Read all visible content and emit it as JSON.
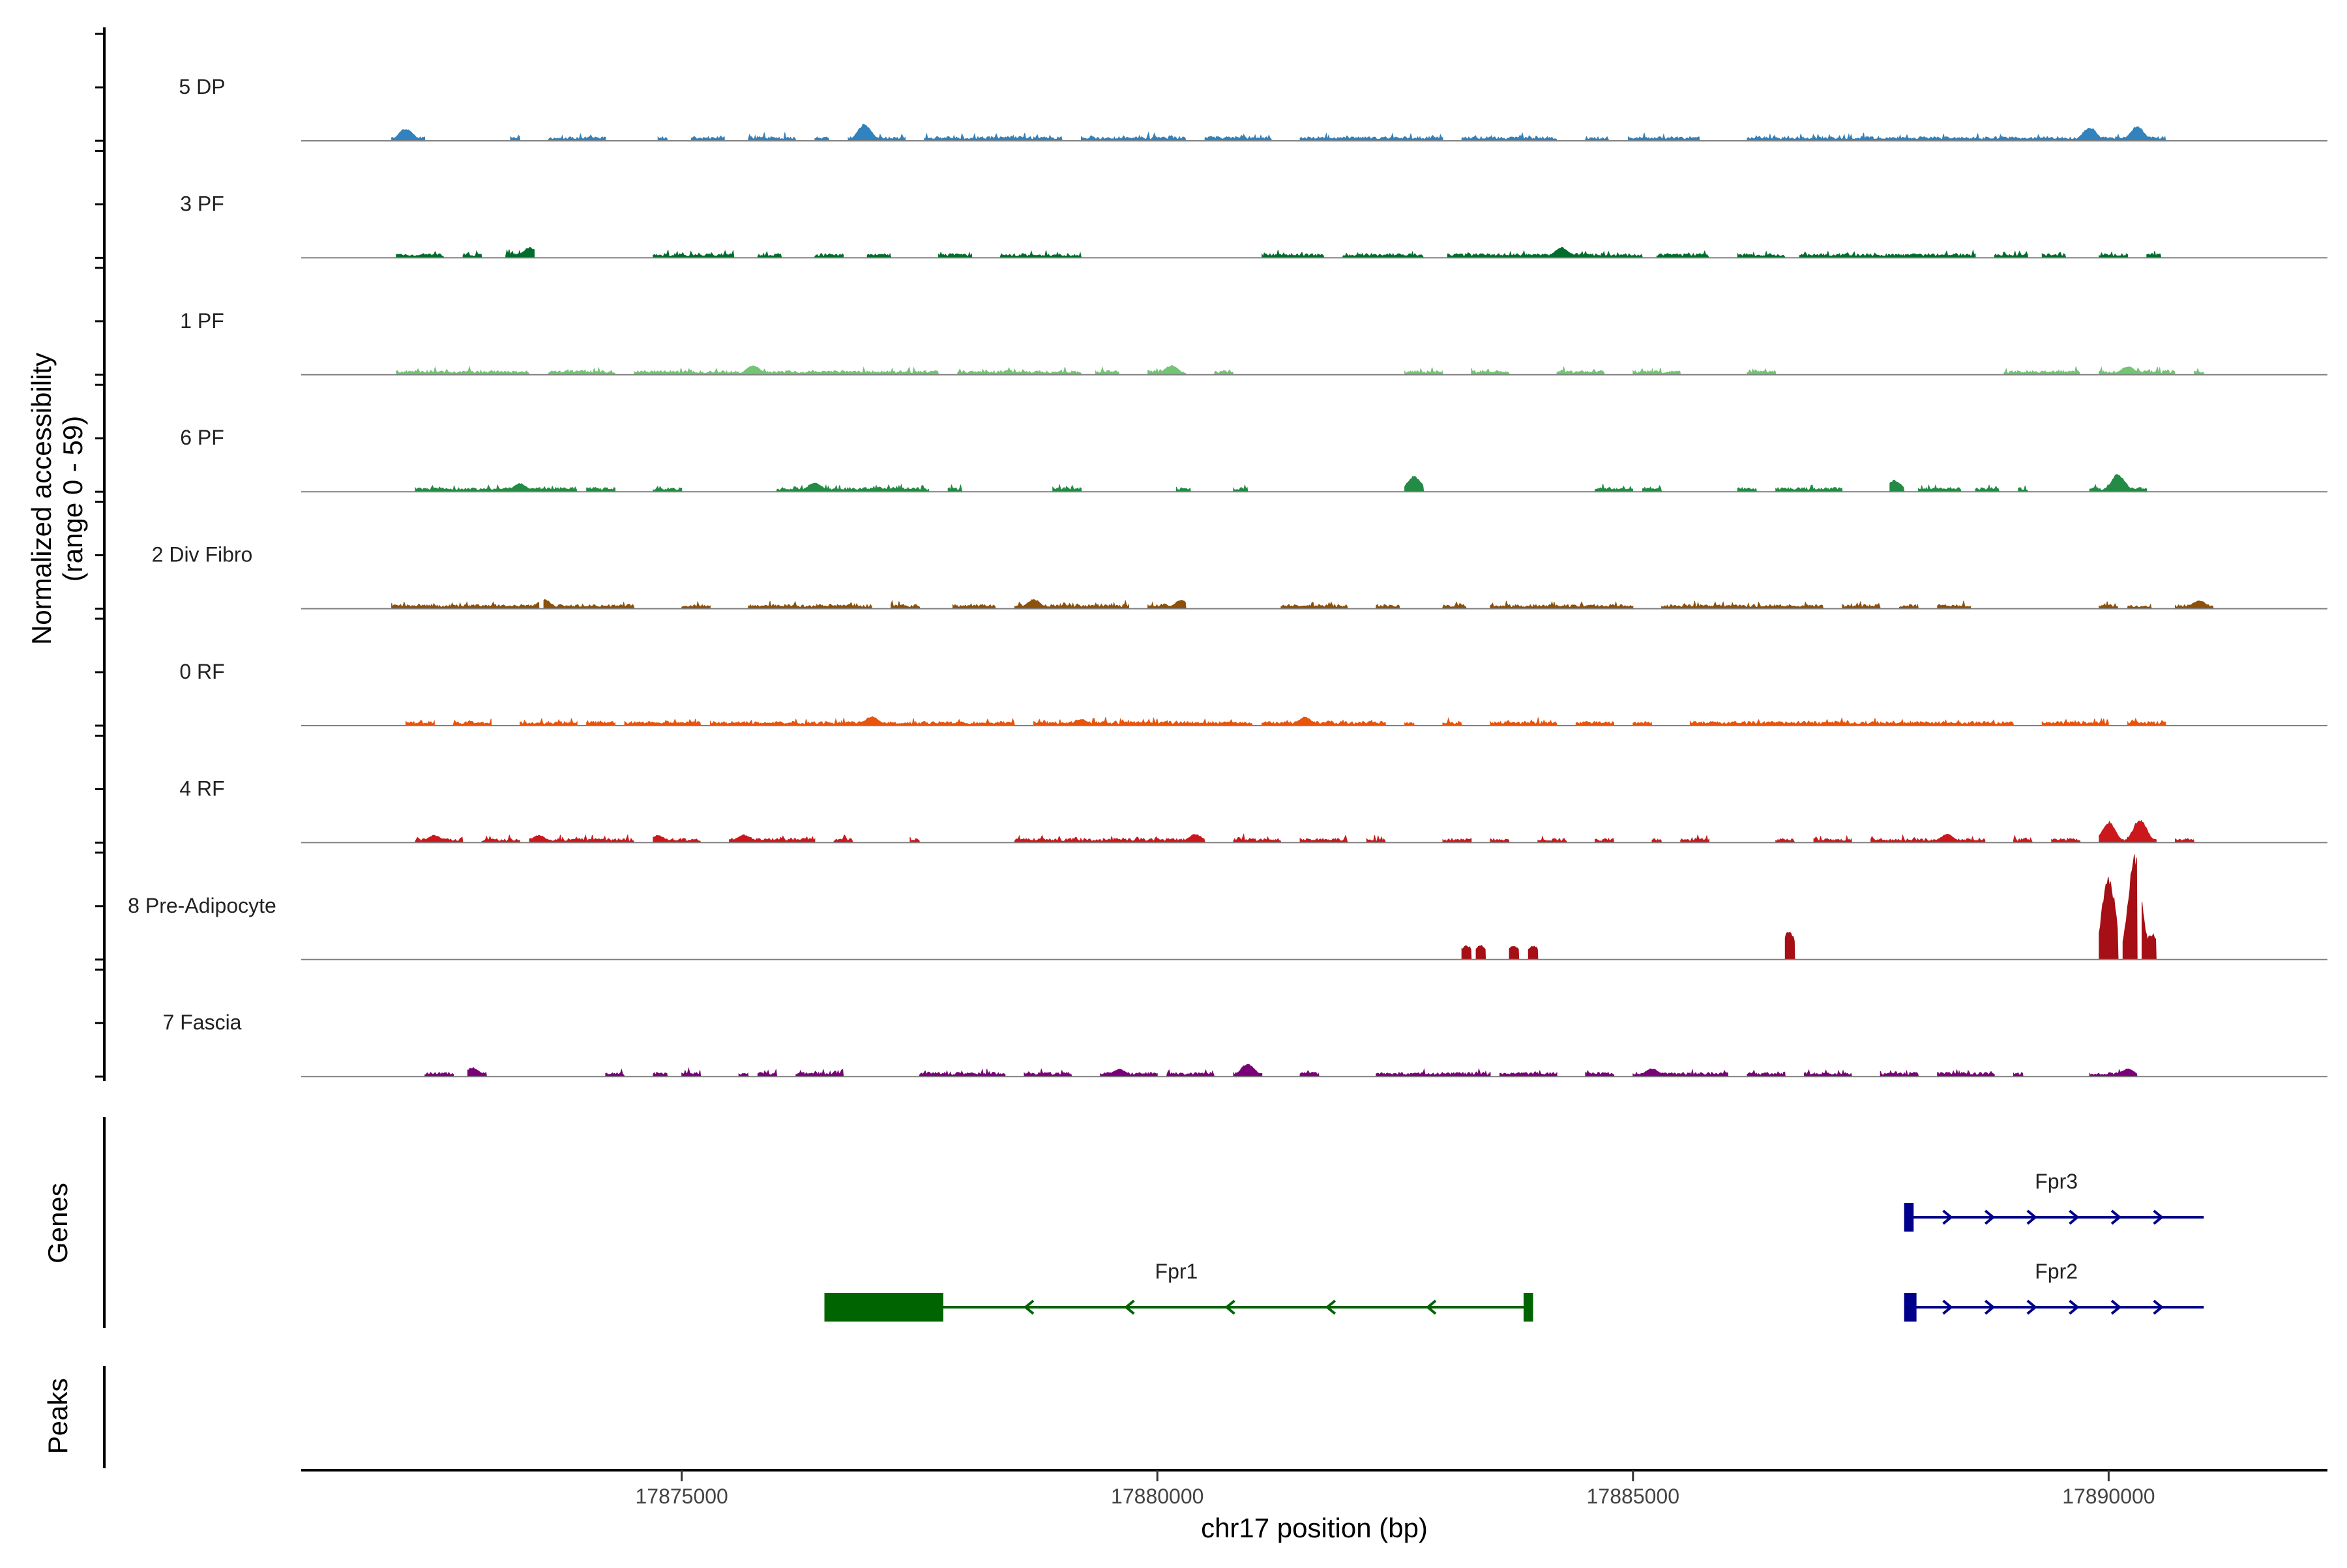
{
  "chart_data": {
    "type": "area",
    "title": "",
    "ylabel_line1": "Normalized accessibility",
    "ylabel_line2": "(range 0 - 59)",
    "xlabel": "chr17 position (bp)",
    "xlim": [
      17871000,
      17892300
    ],
    "ylim": [
      0,
      59
    ],
    "x_ticks": [
      {
        "value": 17875000,
        "label": "17875000"
      },
      {
        "value": 17880000,
        "label": "17880000"
      },
      {
        "value": 17885000,
        "label": "17885000"
      },
      {
        "value": 17890000,
        "label": "17890000"
      }
    ],
    "series": [
      {
        "name": "5 DP",
        "color": "#3182BD",
        "regions": [
          [
            17871950,
            17872300
          ],
          [
            17873200,
            17873300
          ],
          [
            17873600,
            17874200
          ],
          [
            17874750,
            17874850
          ],
          [
            17875100,
            17875450
          ],
          [
            17875700,
            17876200
          ],
          [
            17876400,
            17876550
          ],
          [
            17876750,
            17877350
          ],
          [
            17877550,
            17879000
          ],
          [
            17879200,
            17880300
          ],
          [
            17880500,
            17881200
          ],
          [
            17881500,
            17883000
          ],
          [
            17883200,
            17884200
          ],
          [
            17884500,
            17884750
          ],
          [
            17884950,
            17885700
          ],
          [
            17886200,
            17890600
          ]
        ],
        "peaks": [
          [
            17872100,
            2.4
          ],
          [
            17876920,
            3.2
          ],
          [
            17889800,
            2.6
          ],
          [
            17890300,
            2.8
          ]
        ]
      },
      {
        "name": "3 PF",
        "color": "#006D2C",
        "regions": [
          [
            17872000,
            17872500
          ],
          [
            17872700,
            17872900
          ],
          [
            17873150,
            17873450
          ],
          [
            17874700,
            17875550
          ],
          [
            17875800,
            17876050
          ],
          [
            17876400,
            17876700
          ],
          [
            17876950,
            17877200
          ],
          [
            17877700,
            17878050
          ],
          [
            17878350,
            17879200
          ],
          [
            17881100,
            17881750
          ],
          [
            17881950,
            17882800
          ],
          [
            17883050,
            17885100
          ],
          [
            17885250,
            17885800
          ],
          [
            17886100,
            17886600
          ],
          [
            17886750,
            17888600
          ],
          [
            17888800,
            17889150
          ],
          [
            17889300,
            17889550
          ],
          [
            17889900,
            17890200
          ],
          [
            17890400,
            17890550
          ]
        ],
        "peaks": [
          [
            17873400,
            2.0
          ],
          [
            17884250,
            2.0
          ]
        ]
      },
      {
        "name": "1 PF",
        "color": "#74C476",
        "regions": [
          [
            17872000,
            17873400
          ],
          [
            17873600,
            17874300
          ],
          [
            17874500,
            17877700
          ],
          [
            17877900,
            17879200
          ],
          [
            17879350,
            17879600
          ],
          [
            17879900,
            17880300
          ],
          [
            17880600,
            17880800
          ],
          [
            17882600,
            17883000
          ],
          [
            17883300,
            17883700
          ],
          [
            17884200,
            17884700
          ],
          [
            17885000,
            17885500
          ],
          [
            17886200,
            17886500
          ],
          [
            17888900,
            17889700
          ],
          [
            17889900,
            17890700
          ],
          [
            17890900,
            17891000
          ]
        ],
        "peaks": [
          [
            17875750,
            1.8
          ],
          [
            17880150,
            1.8
          ],
          [
            17890200,
            1.6
          ]
        ]
      },
      {
        "name": "6 PF",
        "color": "#238B45",
        "regions": [
          [
            17872200,
            17873900
          ],
          [
            17874000,
            17874300
          ],
          [
            17874700,
            17875000
          ],
          [
            17876000,
            17877600
          ],
          [
            17877800,
            17877950
          ],
          [
            17878900,
            17879200
          ],
          [
            17880200,
            17880350
          ],
          [
            17880800,
            17880950
          ],
          [
            17882600,
            17882800
          ],
          [
            17884600,
            17885000
          ],
          [
            17885100,
            17885300
          ],
          [
            17886100,
            17886300
          ],
          [
            17886500,
            17887200
          ],
          [
            17887700,
            17887850
          ],
          [
            17888000,
            17888450
          ],
          [
            17888600,
            17888850
          ],
          [
            17889050,
            17889150
          ],
          [
            17889800,
            17890400
          ]
        ],
        "peaks": [
          [
            17873300,
            1.6
          ],
          [
            17876400,
            1.8
          ],
          [
            17882700,
            3.0
          ],
          [
            17887750,
            2.2
          ],
          [
            17890100,
            3.4
          ]
        ]
      },
      {
        "name": "2 Div Fibro",
        "color": "#8C510A",
        "regions": [
          [
            17871950,
            17873500
          ],
          [
            17873550,
            17874500
          ],
          [
            17875000,
            17875300
          ],
          [
            17875700,
            17877000
          ],
          [
            17877200,
            17877500
          ],
          [
            17877850,
            17878300
          ],
          [
            17878500,
            17879700
          ],
          [
            17879900,
            17880300
          ],
          [
            17881300,
            17882000
          ],
          [
            17882300,
            17882550
          ],
          [
            17883000,
            17883250
          ],
          [
            17883500,
            17885000
          ],
          [
            17885300,
            17887000
          ],
          [
            17887200,
            17887600
          ],
          [
            17887800,
            17888000
          ],
          [
            17888200,
            17888550
          ],
          [
            17889900,
            17890100
          ],
          [
            17890200,
            17890450
          ],
          [
            17890700,
            17891100
          ]
        ],
        "peaks": [
          [
            17873550,
            1.8
          ],
          [
            17878700,
            1.8
          ],
          [
            17880250,
            1.6
          ],
          [
            17890950,
            1.6
          ]
        ]
      },
      {
        "name": "0 RF",
        "color": "#E6550D",
        "regions": [
          [
            17872100,
            17872400
          ],
          [
            17872600,
            17873000
          ],
          [
            17873300,
            17873900
          ],
          [
            17874000,
            17874300
          ],
          [
            17874400,
            17875200
          ],
          [
            17875300,
            17878500
          ],
          [
            17878700,
            17881000
          ],
          [
            17881100,
            17882400
          ],
          [
            17882600,
            17882700
          ],
          [
            17883000,
            17883200
          ],
          [
            17883500,
            17884200
          ],
          [
            17884400,
            17884800
          ],
          [
            17885000,
            17885200
          ],
          [
            17885600,
            17889000
          ],
          [
            17889300,
            17890000
          ],
          [
            17890200,
            17890600
          ]
        ],
        "peaks": [
          [
            17877000,
            1.8
          ],
          [
            17879200,
            1.2
          ],
          [
            17881550,
            1.6
          ]
        ]
      },
      {
        "name": "4 RF",
        "color": "#CB181D",
        "regions": [
          [
            17872200,
            17872700
          ],
          [
            17872900,
            17873300
          ],
          [
            17873400,
            17874500
          ],
          [
            17874700,
            17875200
          ],
          [
            17875500,
            17876400
          ],
          [
            17876600,
            17876800
          ],
          [
            17877400,
            17877500
          ],
          [
            17878500,
            17880500
          ],
          [
            17880800,
            17881300
          ],
          [
            17881500,
            17882000
          ],
          [
            17882200,
            17882400
          ],
          [
            17883000,
            17883300
          ],
          [
            17883500,
            17883700
          ],
          [
            17884000,
            17884300
          ],
          [
            17884600,
            17884800
          ],
          [
            17885200,
            17885300
          ],
          [
            17885500,
            17885800
          ],
          [
            17886500,
            17886700
          ],
          [
            17886900,
            17887300
          ],
          [
            17887500,
            17888700
          ],
          [
            17889000,
            17889200
          ],
          [
            17889400,
            17889700
          ],
          [
            17889900,
            17890500
          ],
          [
            17890700,
            17890900
          ]
        ],
        "peaks": [
          [
            17872400,
            1.4
          ],
          [
            17873500,
            1.4
          ],
          [
            17874750,
            1.4
          ],
          [
            17875650,
            1.5
          ],
          [
            17880400,
            1.6
          ],
          [
            17888300,
            1.6
          ],
          [
            17890000,
            4.0
          ],
          [
            17890330,
            4.5
          ]
        ]
      },
      {
        "name": "8 Pre-Adipocyte",
        "color": "#A50F15",
        "regions": [
          [
            17883200,
            17883300
          ],
          [
            17883350,
            17883450
          ],
          [
            17883700,
            17883800
          ],
          [
            17883900,
            17884000
          ],
          [
            17886600,
            17886700
          ],
          [
            17889900,
            17890100
          ],
          [
            17890150,
            17890300
          ],
          [
            17890350,
            17890500
          ]
        ],
        "peaks": [
          [
            17883250,
            2.7
          ],
          [
            17883400,
            2.7
          ],
          [
            17883750,
            2.7
          ],
          [
            17883950,
            2.7
          ],
          [
            17886640,
            5.5
          ],
          [
            17889900,
            3.0
          ],
          [
            17890000,
            16.0
          ],
          [
            17890280,
            20.0
          ],
          [
            17890450,
            5.0
          ]
        ]
      },
      {
        "name": "7 Fascia",
        "color": "#7A0177",
        "regions": [
          [
            17872300,
            17872600
          ],
          [
            17872750,
            17872950
          ],
          [
            17874200,
            17874400
          ],
          [
            17874700,
            17874850
          ],
          [
            17875000,
            17875200
          ],
          [
            17875600,
            17875700
          ],
          [
            17875800,
            17876000
          ],
          [
            17876200,
            17876700
          ],
          [
            17877500,
            17878400
          ],
          [
            17878600,
            17879100
          ],
          [
            17879400,
            17880000
          ],
          [
            17880100,
            17880600
          ],
          [
            17880800,
            17881100
          ],
          [
            17881500,
            17881700
          ],
          [
            17882300,
            17883500
          ],
          [
            17883600,
            17884200
          ],
          [
            17884500,
            17884800
          ],
          [
            17885000,
            17886000
          ],
          [
            17886200,
            17886600
          ],
          [
            17886800,
            17887300
          ],
          [
            17887600,
            17888000
          ],
          [
            17888200,
            17888800
          ],
          [
            17889000,
            17889100
          ],
          [
            17889800,
            17890300
          ]
        ],
        "peaks": [
          [
            17880950,
            2.5
          ],
          [
            17872800,
            1.7
          ],
          [
            17879600,
            1.4
          ],
          [
            17885200,
            1.5
          ],
          [
            17890200,
            1.5
          ]
        ]
      }
    ],
    "genes": [
      {
        "name": "Fpr3",
        "color": "#00008B",
        "start": 17887900,
        "end": 17891000,
        "strand": "+",
        "row": 0,
        "exons": [
          [
            17887850,
            17887950
          ]
        ]
      },
      {
        "name": "Fpr2",
        "color": "#00008B",
        "start": 17887900,
        "end": 17891000,
        "strand": "+",
        "row": 1,
        "exons": [
          [
            17887850,
            17887980
          ]
        ]
      },
      {
        "name": "Fpr1",
        "color": "#006400",
        "start": 17876500,
        "end": 17883900,
        "strand": "-",
        "row": 1,
        "exons": [
          [
            17876500,
            17877750
          ],
          [
            17883850,
            17883950
          ]
        ]
      }
    ],
    "panel_labels": {
      "genes": "Genes",
      "peaks": "Peaks"
    }
  }
}
